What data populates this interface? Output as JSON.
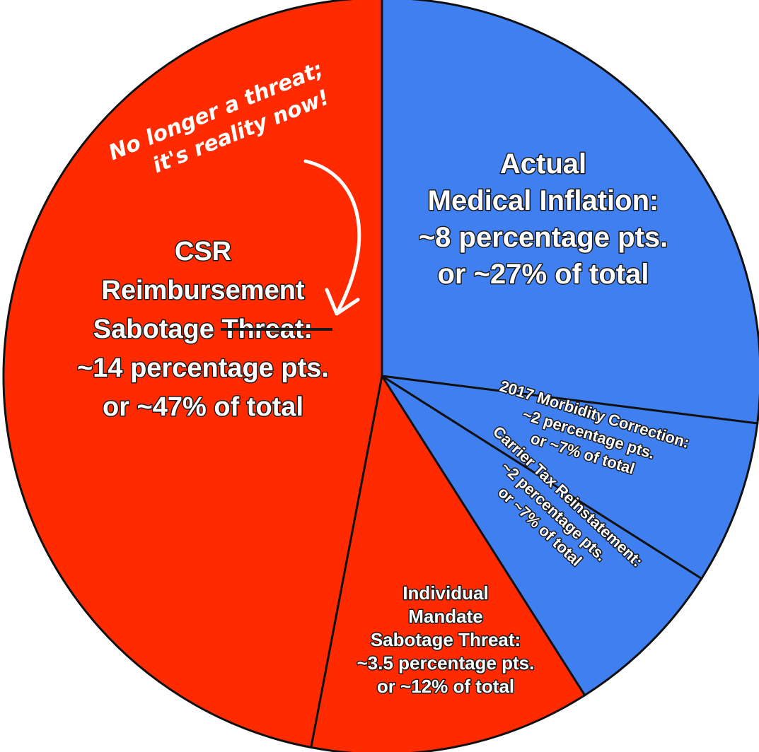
{
  "chart_data": {
    "type": "pie",
    "colors": {
      "red": "#ff2a00",
      "blue": "#3f7ff0",
      "outline": "#111111"
    },
    "slices": [
      {
        "value": 27,
        "color": "blue",
        "label_lines": [
          "Actual",
          "Medical Inflation:",
          "~8 percentage pts.",
          "or ~27% of total"
        ]
      },
      {
        "value": 7,
        "color": "blue",
        "label_lines": [
          "2017 Morbidity Correction:",
          "~2 percentage pts.",
          "or ~7% of total"
        ]
      },
      {
        "value": 7,
        "color": "blue",
        "label_lines": [
          "Carrier Tax Reinstatement:",
          "~2 percentage pts.",
          "or ~7% of total"
        ]
      },
      {
        "value": 12,
        "color": "red",
        "label_lines": [
          "Individual",
          "Mandate",
          "Sabotage Threat:",
          "~3.5 percentage pts.",
          "or ~12% of total"
        ]
      },
      {
        "value": 47,
        "color": "red",
        "label_lines": [
          "CSR",
          "Reimbursement",
          "Sabotage",
          "~14 percentage pts.",
          "or ~47% of total"
        ],
        "struck_word": "Threat:"
      }
    ],
    "annotation": {
      "lines": [
        "No longer a threat;",
        "it's reality now!"
      ]
    }
  }
}
